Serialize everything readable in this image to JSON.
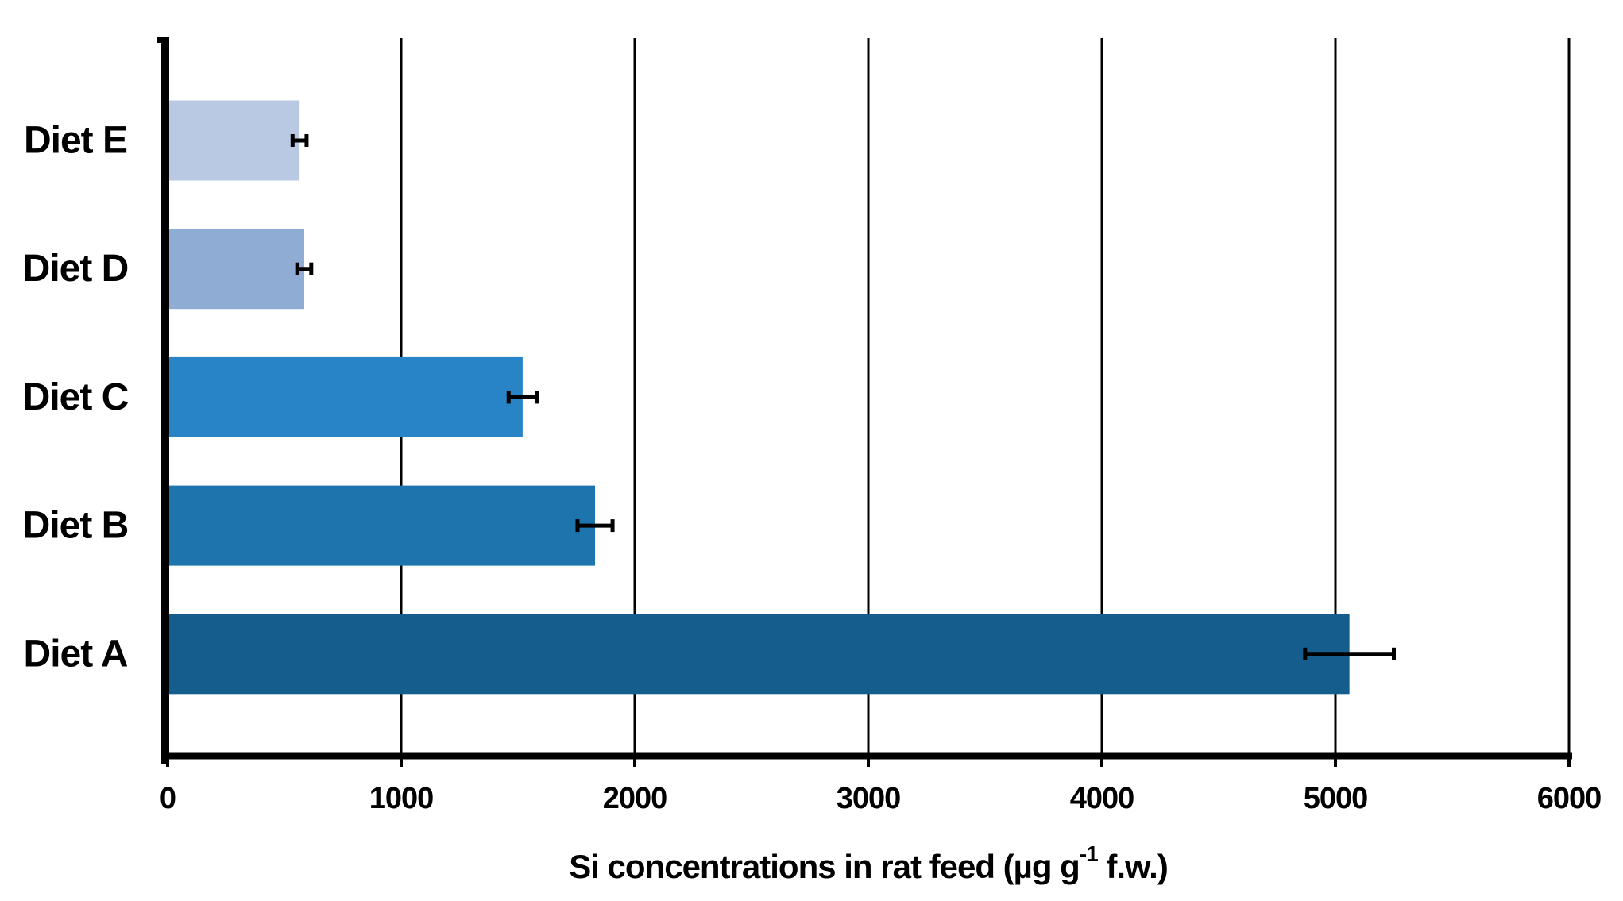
{
  "chart_data": {
    "type": "bar",
    "orientation": "horizontal",
    "title": "",
    "xlabel": {
      "full_text": "Si concentrations in rat feed (µg g-1 f.w.)",
      "main": "Si concentrations in rat feed (µg g",
      "superscript": "-1",
      "suffix": " f.w.)"
    },
    "ylabel": "",
    "categories": [
      "Diet E",
      "Diet D",
      "Diet C",
      "Diet B",
      "Diet A"
    ],
    "series": [
      {
        "name": "Si concentration",
        "values": [
          565,
          585,
          1520,
          1830,
          5060
        ],
        "errors": [
          30,
          30,
          60,
          75,
          190
        ]
      }
    ],
    "bar_colors": [
      "#b9c9e4",
      "#8fadd4",
      "#2884c6",
      "#1e74ad",
      "#145d8c"
    ],
    "xlim": [
      0,
      6000
    ],
    "xticks": [
      0,
      1000,
      2000,
      3000,
      4000,
      5000,
      6000
    ],
    "xtick_labels": [
      "0",
      "1000",
      "2000",
      "3000",
      "4000",
      "5000",
      "6000"
    ],
    "grid": "vertical",
    "legend": "none",
    "axis_color": "#000000",
    "error_bar_color": "#000000",
    "background": "#ffffff"
  }
}
